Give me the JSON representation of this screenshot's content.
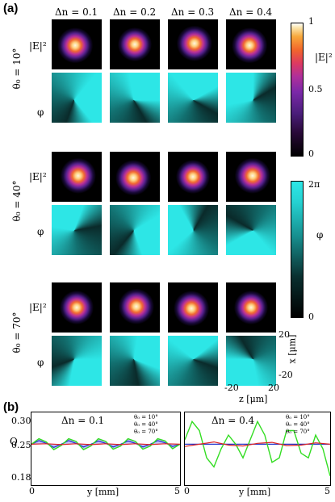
{
  "panel_a_label": "(a)",
  "panel_b_label": "(b)",
  "columns": [
    "Δn =  0.1",
    "Δn =  0.2",
    "Δn =  0.3",
    "Δn =  0.4"
  ],
  "row_labels": {
    "intensity": "|E|²",
    "phase": "φ"
  },
  "groups": [
    {
      "label": "θ₀ = 10°"
    },
    {
      "label": "θ₀ = 40°"
    },
    {
      "label": "θ₀ = 70°"
    }
  ],
  "colorbar_intensity": {
    "label": "|E|²",
    "ticks": [
      "1",
      "0.5",
      "0"
    ]
  },
  "colorbar_phase": {
    "label": "φ",
    "ticks": [
      "2π",
      "0"
    ]
  },
  "tile_axes": {
    "z_label": "z [μm]",
    "x_label": "x [μm]",
    "z_ticks": [
      "-20",
      "20"
    ],
    "x_ticks": [
      "20",
      "-20"
    ]
  },
  "colors": {
    "phase_cyan": "#2de6e6",
    "phase_dark": "#0a2a2a",
    "line_green": "#33dd22",
    "line_red": "#dd2222",
    "line_blue": "#2233cc",
    "fill_blue": "#8c8cf0"
  },
  "chart_data": [
    {
      "type": "line",
      "title": "Δn =  0.1",
      "xlabel": "y [mm]",
      "ylabel": "Q",
      "xlim": [
        0,
        5
      ],
      "ylim": [
        0.16,
        0.32
      ],
      "x_ticks": [
        "0",
        "5"
      ],
      "y_ticks": [
        "0.30",
        "0.25",
        "0.18"
      ],
      "legend": [
        "θ₀ = 10°",
        "θ₀ = 40°",
        "θ₀ = 70°"
      ],
      "series": [
        {
          "name": "θ₀ = 10°",
          "color": "#2233cc",
          "x": [
            0,
            0.25,
            0.5,
            0.75,
            1,
            1.25,
            1.5,
            1.75,
            2,
            2.25,
            2.5,
            2.75,
            3,
            3.25,
            3.5,
            3.75,
            4,
            4.25,
            4.5,
            4.75,
            5
          ],
          "y": [
            0.25,
            0.258,
            0.252,
            0.243,
            0.25,
            0.258,
            0.252,
            0.244,
            0.25,
            0.257,
            0.252,
            0.244,
            0.25,
            0.257,
            0.252,
            0.244,
            0.25,
            0.258,
            0.253,
            0.245,
            0.25
          ]
        },
        {
          "name": "θ₀ = 40°",
          "color": "#33dd22",
          "x": [
            0,
            0.25,
            0.5,
            0.75,
            1,
            1.25,
            1.5,
            1.75,
            2,
            2.25,
            2.5,
            2.75,
            3,
            3.25,
            3.5,
            3.75,
            4,
            4.25,
            4.5,
            4.75,
            5
          ],
          "y": [
            0.25,
            0.262,
            0.255,
            0.238,
            0.247,
            0.262,
            0.256,
            0.238,
            0.246,
            0.262,
            0.256,
            0.239,
            0.246,
            0.262,
            0.256,
            0.239,
            0.246,
            0.262,
            0.257,
            0.24,
            0.25
          ]
        },
        {
          "name": "θ₀ = 70°",
          "color": "#dd2222",
          "x": [
            0,
            0.5,
            1,
            1.5,
            2,
            2.5,
            3,
            3.5,
            4,
            4.5,
            5
          ],
          "y": [
            0.25,
            0.251,
            0.249,
            0.251,
            0.249,
            0.251,
            0.249,
            0.251,
            0.249,
            0.251,
            0.25
          ]
        }
      ]
    },
    {
      "type": "line",
      "title": "Δn =  0.4",
      "xlabel": "y [mm]",
      "ylabel": "",
      "xlim": [
        0,
        5
      ],
      "ylim": [
        0.16,
        0.32
      ],
      "x_ticks": [
        "0",
        "5"
      ],
      "legend": [
        "θ₀ = 10°",
        "θ₀ = 40°",
        "θ₀ = 70°"
      ],
      "series": [
        {
          "name": "θ₀ = 10°",
          "color": "#2233cc",
          "x": [
            0,
            5
          ],
          "y": [
            0.25,
            0.25
          ]
        },
        {
          "name": "θ₀ = 40°",
          "color": "#33dd22",
          "x": [
            0,
            0.25,
            0.5,
            0.75,
            1,
            1.25,
            1.5,
            1.75,
            2,
            2.25,
            2.5,
            2.75,
            3,
            3.25,
            3.5,
            3.75,
            4,
            4.25,
            4.5,
            4.75,
            5
          ],
          "y": [
            0.26,
            0.3,
            0.28,
            0.22,
            0.2,
            0.24,
            0.27,
            0.25,
            0.22,
            0.26,
            0.3,
            0.27,
            0.21,
            0.22,
            0.28,
            0.28,
            0.23,
            0.22,
            0.27,
            0.24,
            0.18
          ]
        },
        {
          "name": "θ₀ = 70°",
          "color": "#dd2222",
          "x": [
            0,
            0.5,
            1,
            1.5,
            2,
            2.5,
            3,
            3.5,
            4,
            4.5,
            5
          ],
          "y": [
            0.245,
            0.25,
            0.255,
            0.248,
            0.246,
            0.252,
            0.254,
            0.247,
            0.248,
            0.253,
            0.25
          ]
        }
      ]
    }
  ]
}
